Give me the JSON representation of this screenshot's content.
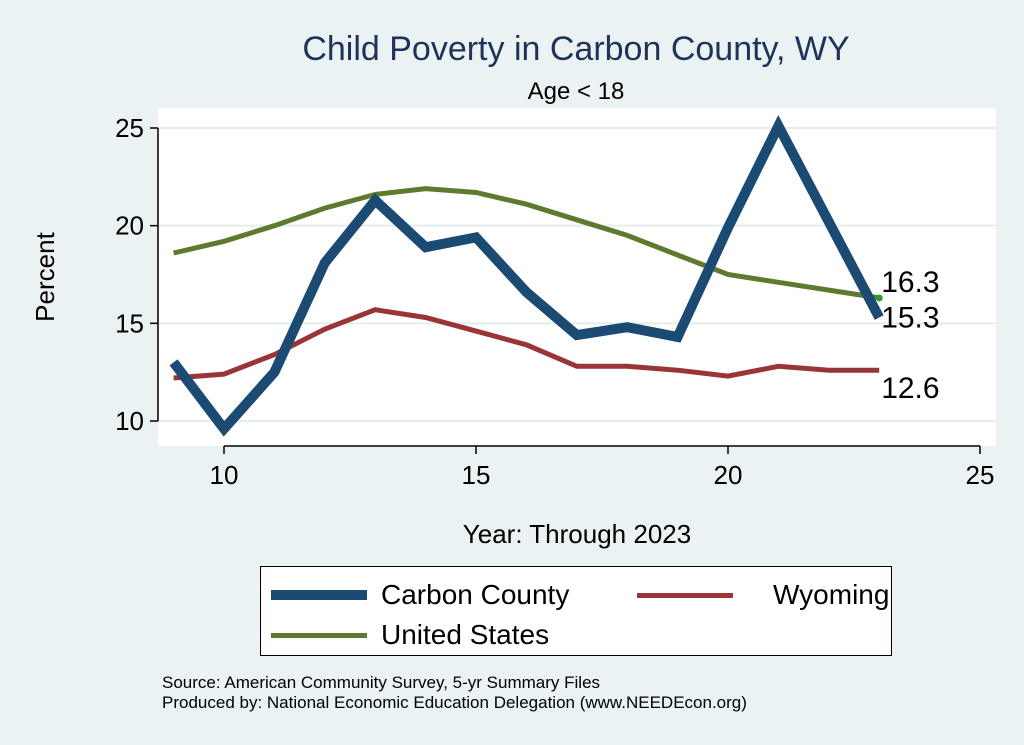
{
  "chart_data": {
    "type": "line",
    "title": "Child Poverty in Carbon County, WY",
    "subtitle": "Age < 18",
    "xlabel": "Year: Through 2023",
    "ylabel": "Percent",
    "xlim": [
      9,
      25
    ],
    "ylim": [
      9.5,
      25.5
    ],
    "x_ticks": [
      10,
      15,
      20,
      25
    ],
    "y_ticks": [
      10,
      15,
      20,
      25
    ],
    "x_tick_labels": [
      "10",
      "15",
      "20",
      "25"
    ],
    "y_tick_labels": [
      "10",
      "15",
      "20",
      "25"
    ],
    "grid": true,
    "legend_position": "bottom",
    "x": [
      9,
      10,
      11,
      12,
      13,
      14,
      15,
      16,
      17,
      18,
      19,
      20,
      21,
      22,
      23
    ],
    "series": [
      {
        "name": "Carbon County",
        "color": "#1B4A73",
        "values": [
          13.0,
          9.6,
          12.5,
          18.1,
          21.3,
          18.9,
          19.4,
          16.6,
          14.4,
          14.8,
          14.3,
          19.9,
          25.1,
          20.2,
          15.3
        ],
        "end_label": "15.3"
      },
      {
        "name": "Wyoming",
        "color": "#9A3537",
        "values": [
          12.2,
          12.4,
          13.4,
          14.7,
          15.7,
          15.3,
          14.6,
          13.9,
          12.8,
          12.8,
          12.6,
          12.3,
          12.8,
          12.6,
          12.6
        ],
        "end_label": "12.6"
      },
      {
        "name": "United States",
        "color": "#5E7A2E",
        "values": [
          18.6,
          19.2,
          20.0,
          20.9,
          21.6,
          21.9,
          21.7,
          21.1,
          20.3,
          19.5,
          18.5,
          17.5,
          17.1,
          16.7,
          16.3
        ],
        "end_label": "16.3"
      }
    ],
    "notes": [
      "Source: American Community Survey, 5-yr Summary Files",
      "Produced by: National Economic Education Delegation (www.NEEDEcon.org)"
    ]
  }
}
